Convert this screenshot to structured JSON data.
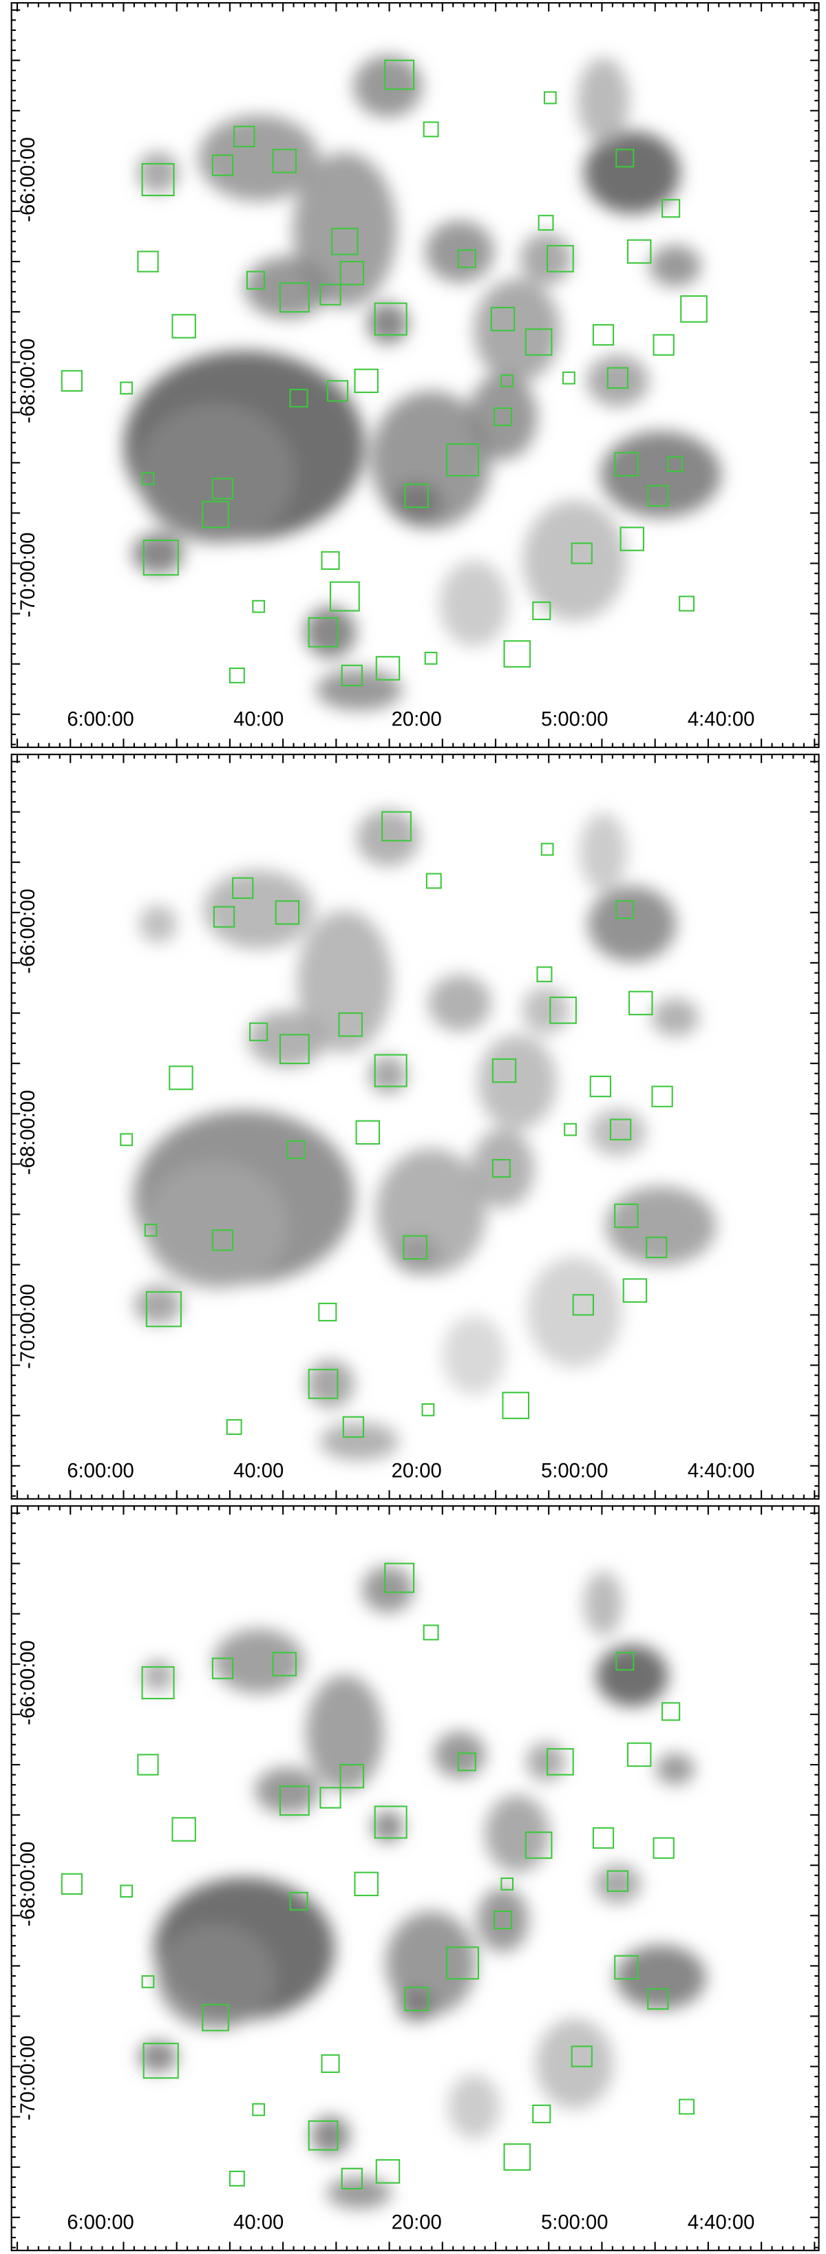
{
  "panels": [
    {
      "x_tick_labels": [
        "6:00:00",
        "40:00",
        "20:00",
        "5:00:00",
        "4:40:00"
      ],
      "y_tick_labels": [
        "-66:00:00",
        "-68:00:00",
        "-70:00:00"
      ]
    },
    {
      "x_tick_labels": [
        "6:00:00",
        "40:00",
        "20:00",
        "5:00:00",
        "4:40:00"
      ],
      "y_tick_labels": [
        "-66:00:00",
        "-68:00:00",
        "-70:00:00"
      ]
    },
    {
      "x_tick_labels": [
        "6:00:00",
        "40:00",
        "20:00",
        "5:00:00",
        "4:40:00"
      ],
      "y_tick_labels": [
        "-66:00:00",
        "-68:00:00",
        "-70:00:00"
      ]
    }
  ]
}
